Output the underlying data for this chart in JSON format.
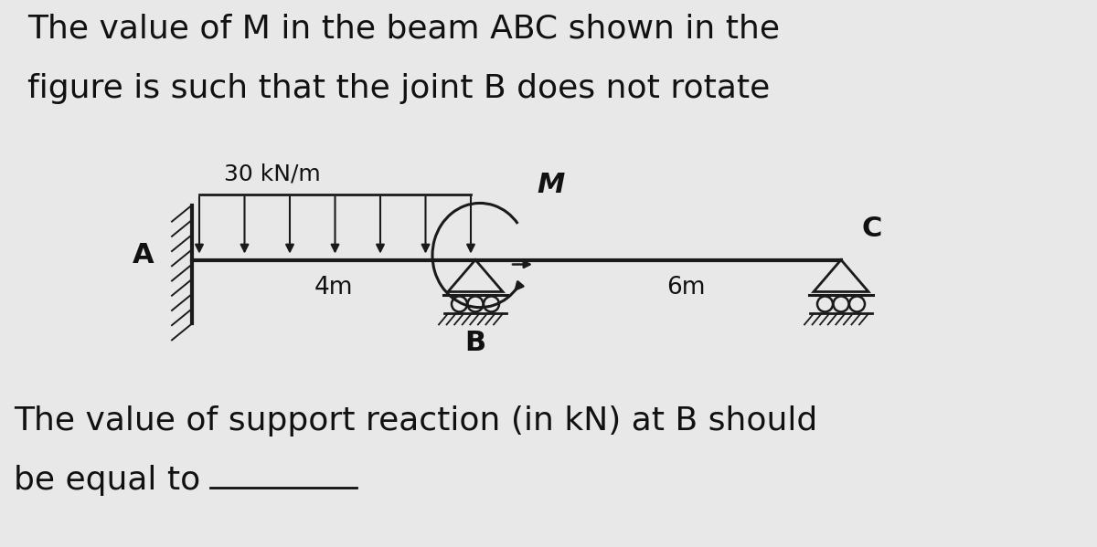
{
  "bg_color": "#e8e8e8",
  "title_line1": "The value of M in the beam ABC shown in the",
  "title_line2": "figure is such that the joint B does not rotate",
  "bottom_line1": "The value of support reaction (in kN) at B should",
  "bottom_line2": "be equal to",
  "load_label": "30 kN/m",
  "moment_label": "M",
  "span_label_1": "4m",
  "span_label_2": "6m",
  "point_A": "A",
  "point_B": "B",
  "point_C": "C",
  "beam_color": "#1a1a1a",
  "text_color": "#111111",
  "font_size_title": 26,
  "font_size_label": 20,
  "font_size_small": 18
}
